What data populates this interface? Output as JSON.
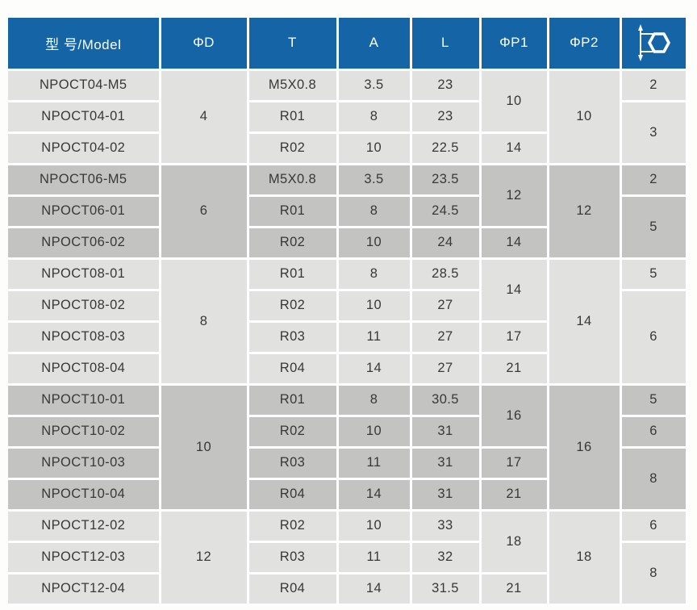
{
  "colors": {
    "header_bg": "#1564a5",
    "header_text": "#ffffff",
    "group_shade_light": "#e1e1df",
    "group_shade_dark": "#c3c3c1",
    "divider": "#ffffff",
    "body_text": "#383838"
  },
  "table": {
    "columns": [
      {
        "key": "model",
        "label": "型 号/Model"
      },
      {
        "key": "d",
        "label": "ΦD"
      },
      {
        "key": "t",
        "label": "T"
      },
      {
        "key": "a",
        "label": "A"
      },
      {
        "key": "l",
        "label": "L"
      },
      {
        "key": "p1",
        "label": "ΦP1"
      },
      {
        "key": "p2",
        "label": "ΦP2"
      },
      {
        "key": "hex",
        "label": "",
        "icon": "hex-across-flats-icon"
      }
    ],
    "groups": [
      {
        "shade": "light",
        "rows": [
          [
            {
              "c": "model",
              "v": "NPOCT04-M5"
            },
            {
              "c": "d",
              "v": "4",
              "rs": 3
            },
            {
              "c": "t",
              "v": "M5X0.8"
            },
            {
              "c": "a",
              "v": "3.5"
            },
            {
              "c": "l",
              "v": "23"
            },
            {
              "c": "p1",
              "v": "10",
              "rs": 2
            },
            {
              "c": "p2",
              "v": "10",
              "rs": 3
            },
            {
              "c": "hex",
              "v": "2"
            }
          ],
          [
            {
              "c": "model",
              "v": "NPOCT04-01"
            },
            {
              "c": "t",
              "v": "R01"
            },
            {
              "c": "a",
              "v": "8"
            },
            {
              "c": "l",
              "v": "23"
            },
            {
              "c": "hex",
              "v": "3",
              "rs": 2
            }
          ],
          [
            {
              "c": "model",
              "v": "NPOCT04-02"
            },
            {
              "c": "t",
              "v": "R02"
            },
            {
              "c": "a",
              "v": "10"
            },
            {
              "c": "l",
              "v": "22.5"
            },
            {
              "c": "p1",
              "v": "14"
            }
          ]
        ]
      },
      {
        "shade": "dark",
        "rows": [
          [
            {
              "c": "model",
              "v": "NPOCT06-M5"
            },
            {
              "c": "d",
              "v": "6",
              "rs": 3
            },
            {
              "c": "t",
              "v": "M5X0.8"
            },
            {
              "c": "a",
              "v": "3.5"
            },
            {
              "c": "l",
              "v": "23.5"
            },
            {
              "c": "p1",
              "v": "12",
              "rs": 2
            },
            {
              "c": "p2",
              "v": "12",
              "rs": 3
            },
            {
              "c": "hex",
              "v": "2"
            }
          ],
          [
            {
              "c": "model",
              "v": "NPOCT06-01"
            },
            {
              "c": "t",
              "v": "R01"
            },
            {
              "c": "a",
              "v": "8"
            },
            {
              "c": "l",
              "v": "24.5"
            },
            {
              "c": "hex",
              "v": "5",
              "rs": 2
            }
          ],
          [
            {
              "c": "model",
              "v": "NPOCT06-02"
            },
            {
              "c": "t",
              "v": "R02"
            },
            {
              "c": "a",
              "v": "10"
            },
            {
              "c": "l",
              "v": "24"
            },
            {
              "c": "p1",
              "v": "14"
            }
          ]
        ]
      },
      {
        "shade": "light",
        "rows": [
          [
            {
              "c": "model",
              "v": "NPOCT08-01"
            },
            {
              "c": "d",
              "v": "8",
              "rs": 4
            },
            {
              "c": "t",
              "v": "R01"
            },
            {
              "c": "a",
              "v": "8"
            },
            {
              "c": "l",
              "v": "28.5"
            },
            {
              "c": "p1",
              "v": "14",
              "rs": 2
            },
            {
              "c": "p2",
              "v": "14",
              "rs": 4
            },
            {
              "c": "hex",
              "v": "5"
            }
          ],
          [
            {
              "c": "model",
              "v": "NPOCT08-02"
            },
            {
              "c": "t",
              "v": "R02"
            },
            {
              "c": "a",
              "v": "10"
            },
            {
              "c": "l",
              "v": "27"
            },
            {
              "c": "hex",
              "v": "6",
              "rs": 3
            }
          ],
          [
            {
              "c": "model",
              "v": "NPOCT08-03"
            },
            {
              "c": "t",
              "v": "R03"
            },
            {
              "c": "a",
              "v": "11"
            },
            {
              "c": "l",
              "v": "27"
            },
            {
              "c": "p1",
              "v": "17"
            }
          ],
          [
            {
              "c": "model",
              "v": "NPOCT08-04"
            },
            {
              "c": "t",
              "v": "R04"
            },
            {
              "c": "a",
              "v": "14"
            },
            {
              "c": "l",
              "v": "27"
            },
            {
              "c": "p1",
              "v": "21"
            }
          ]
        ]
      },
      {
        "shade": "dark",
        "rows": [
          [
            {
              "c": "model",
              "v": "NPOCT10-01"
            },
            {
              "c": "d",
              "v": "10",
              "rs": 4
            },
            {
              "c": "t",
              "v": "R01"
            },
            {
              "c": "a",
              "v": "8"
            },
            {
              "c": "l",
              "v": "30.5"
            },
            {
              "c": "p1",
              "v": "16",
              "rs": 2
            },
            {
              "c": "p2",
              "v": "16",
              "rs": 4
            },
            {
              "c": "hex",
              "v": "5"
            }
          ],
          [
            {
              "c": "model",
              "v": "NPOCT10-02"
            },
            {
              "c": "t",
              "v": "R02"
            },
            {
              "c": "a",
              "v": "10"
            },
            {
              "c": "l",
              "v": "31"
            },
            {
              "c": "hex",
              "v": "6"
            }
          ],
          [
            {
              "c": "model",
              "v": "NPOCT10-03"
            },
            {
              "c": "t",
              "v": "R03"
            },
            {
              "c": "a",
              "v": "11"
            },
            {
              "c": "l",
              "v": "31"
            },
            {
              "c": "p1",
              "v": "17"
            },
            {
              "c": "hex",
              "v": "8",
              "rs": 2
            }
          ],
          [
            {
              "c": "model",
              "v": "NPOCT10-04"
            },
            {
              "c": "t",
              "v": "R04"
            },
            {
              "c": "a",
              "v": "14"
            },
            {
              "c": "l",
              "v": "31"
            },
            {
              "c": "p1",
              "v": "21"
            }
          ]
        ]
      },
      {
        "shade": "light",
        "rows": [
          [
            {
              "c": "model",
              "v": "NPOCT12-02"
            },
            {
              "c": "d",
              "v": "12",
              "rs": 3
            },
            {
              "c": "t",
              "v": "R02"
            },
            {
              "c": "a",
              "v": "10"
            },
            {
              "c": "l",
              "v": "33"
            },
            {
              "c": "p1",
              "v": "18",
              "rs": 2
            },
            {
              "c": "p2",
              "v": "18",
              "rs": 3
            },
            {
              "c": "hex",
              "v": "6"
            }
          ],
          [
            {
              "c": "model",
              "v": "NPOCT12-03"
            },
            {
              "c": "t",
              "v": "R03"
            },
            {
              "c": "a",
              "v": "11"
            },
            {
              "c": "l",
              "v": "32"
            },
            {
              "c": "hex",
              "v": "8",
              "rs": 2
            }
          ],
          [
            {
              "c": "model",
              "v": "NPOCT12-04"
            },
            {
              "c": "t",
              "v": "R04"
            },
            {
              "c": "a",
              "v": "14"
            },
            {
              "c": "l",
              "v": "31.5"
            },
            {
              "c": "p1",
              "v": "21"
            }
          ]
        ]
      }
    ]
  }
}
